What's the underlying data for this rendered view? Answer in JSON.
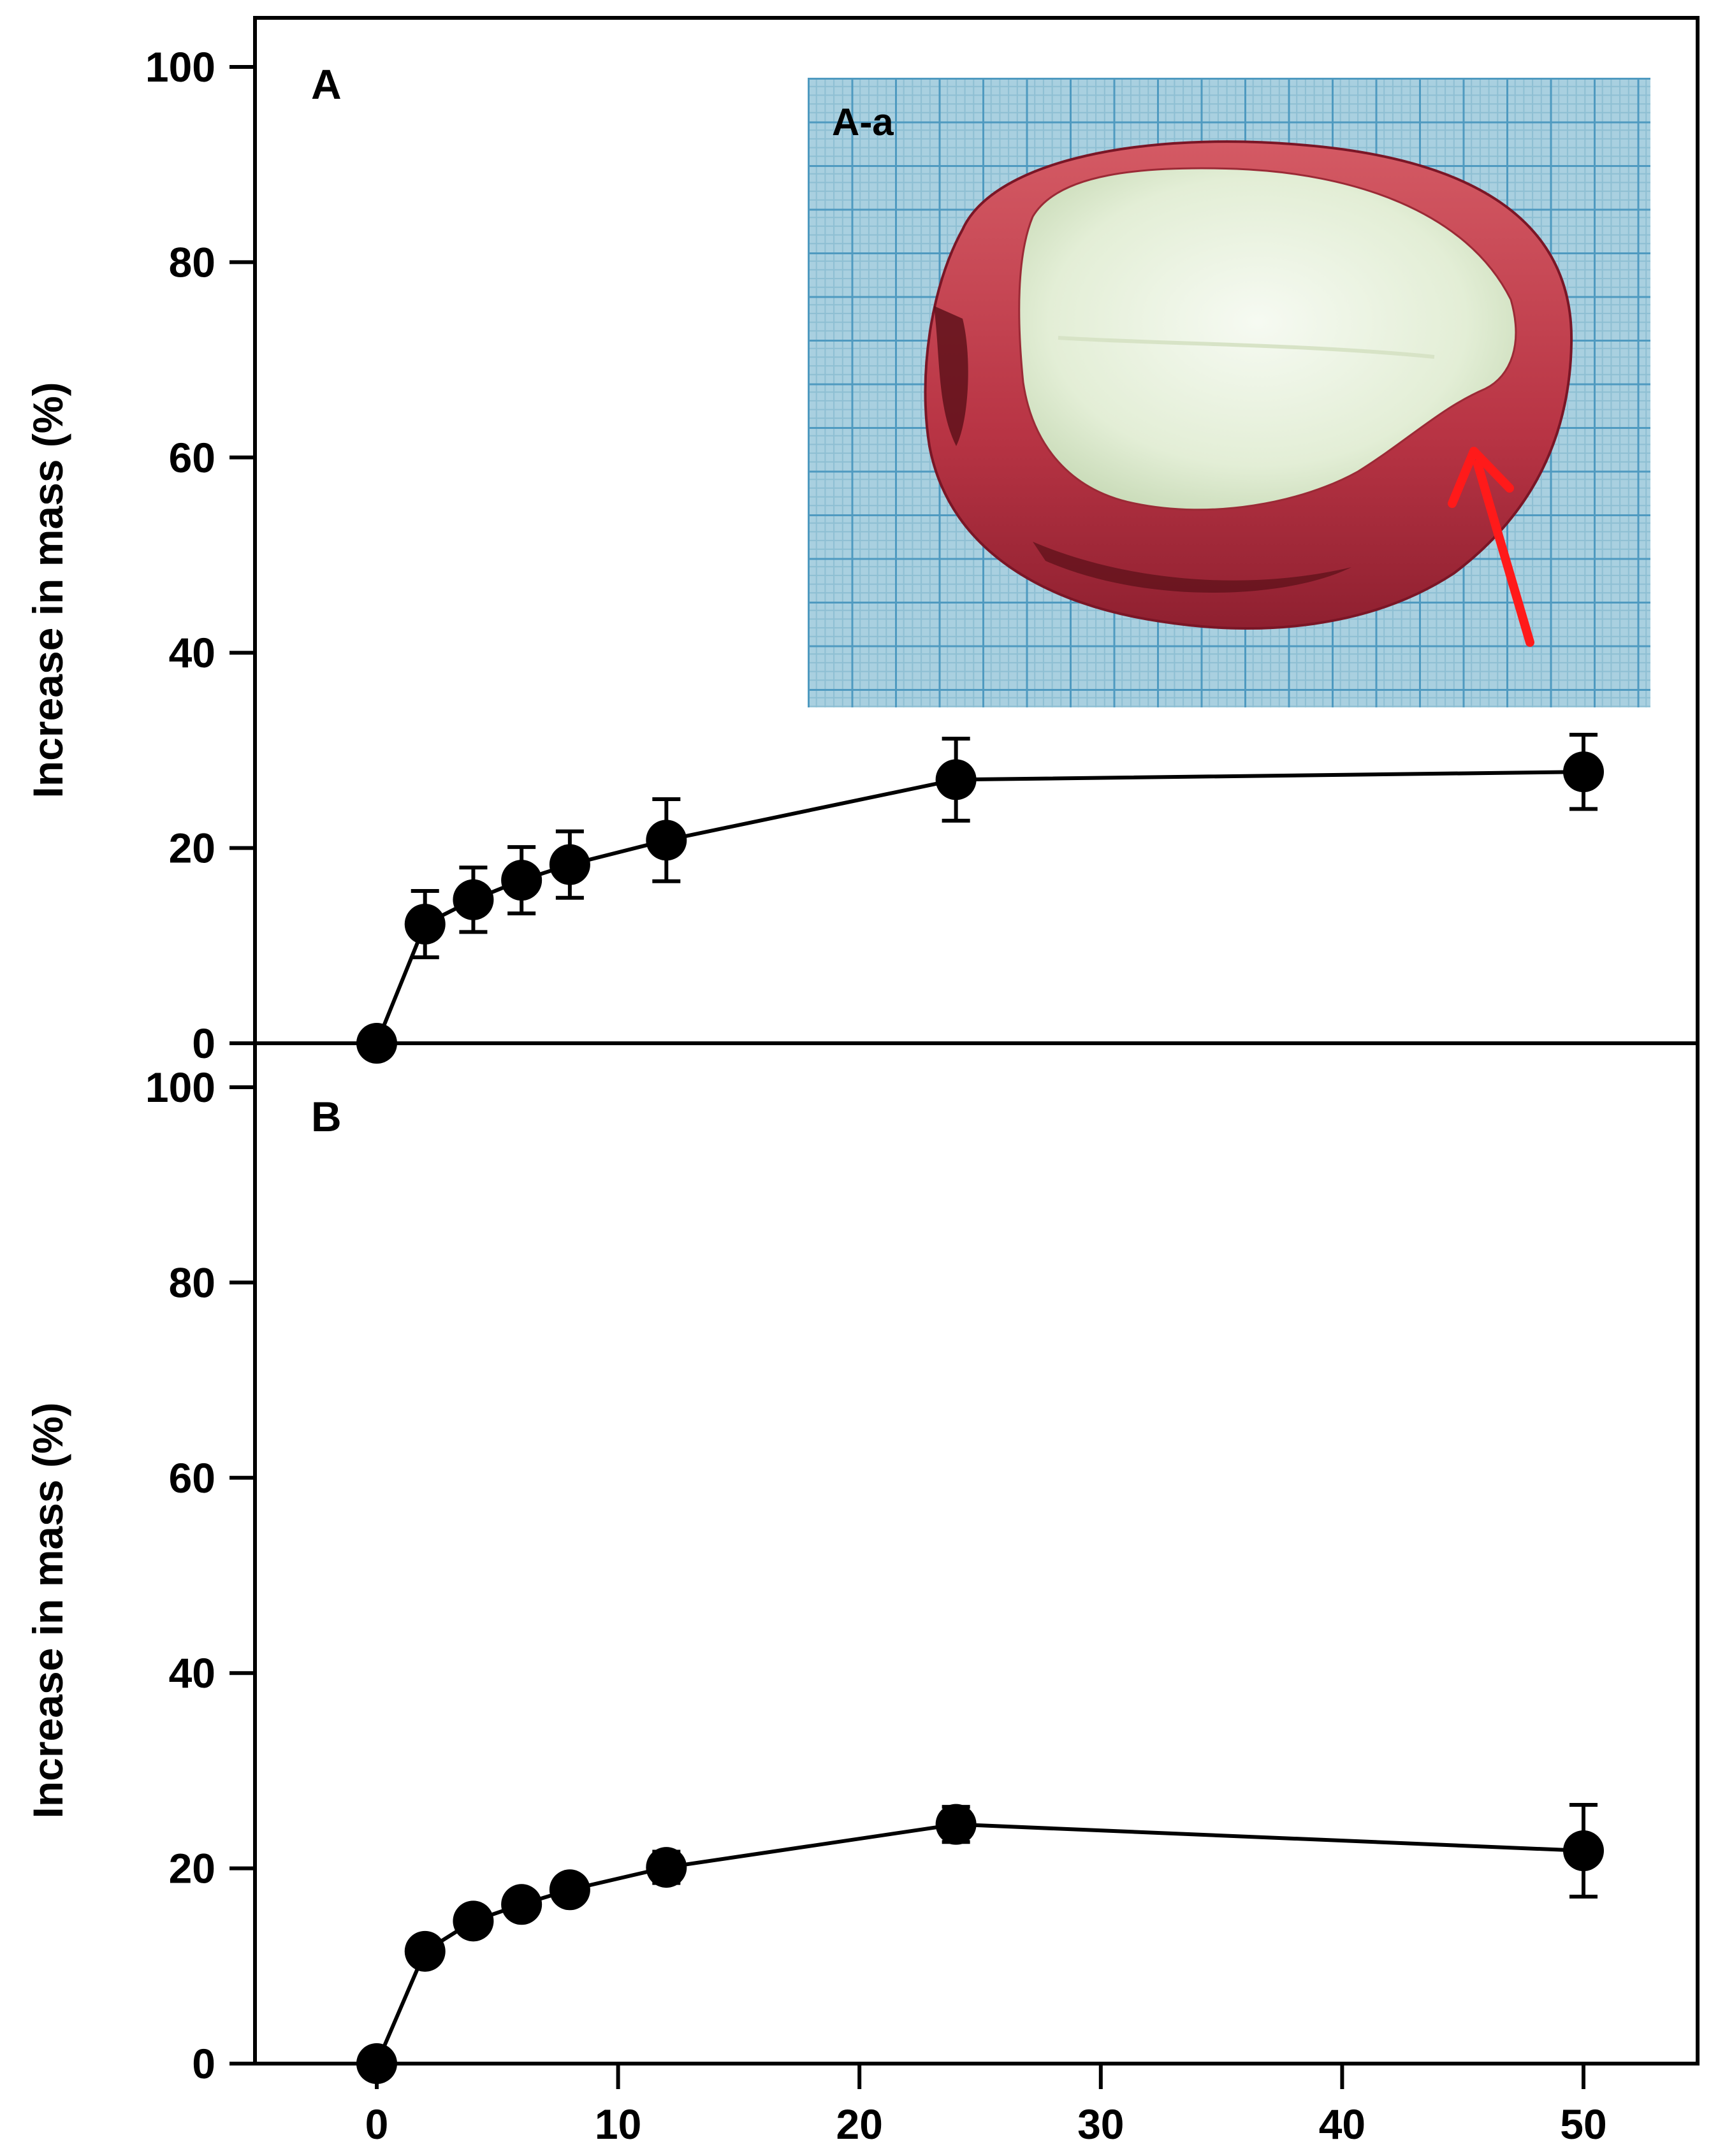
{
  "chart_data": [
    {
      "type": "line",
      "panel_label": "A",
      "title": "",
      "xlabel": "",
      "ylabel": "Increase in mass (%)",
      "xlim": [
        -5,
        55
      ],
      "ylim": [
        0,
        100
      ],
      "x_ticks": [
        "0",
        "10",
        "20",
        "30",
        "40",
        "50"
      ],
      "y_ticks": [
        "0",
        "20",
        "40",
        "60",
        "80",
        "100"
      ],
      "grid": false,
      "series": [
        {
          "name": "",
          "x": [
            0,
            2,
            4,
            6,
            8,
            12,
            24,
            50
          ],
          "values": [
            0,
            12.2,
            14.7,
            16.7,
            18.3,
            20.8,
            27.0,
            27.8
          ],
          "error": [
            0,
            3.4,
            3.3,
            3.4,
            3.4,
            4.2,
            4.2,
            3.8
          ]
        }
      ],
      "inset": {
        "label": "A-a",
        "kind": "photo",
        "subject": "seed cross-section on blue grid paper",
        "arrow_color": "#ff1a1a"
      }
    },
    {
      "type": "line",
      "panel_label": "B",
      "title": "",
      "xlabel": "",
      "ylabel": "Increase in mass (%)",
      "xlim": [
        -5,
        55
      ],
      "ylim": [
        0,
        100
      ],
      "x_ticks": [
        "0",
        "10",
        "20",
        "30",
        "40",
        "50"
      ],
      "y_ticks": [
        "0",
        "20",
        "40",
        "60",
        "80",
        "100"
      ],
      "grid": false,
      "series": [
        {
          "name": "",
          "x": [
            0,
            2,
            4,
            6,
            8,
            12,
            24,
            50
          ],
          "values": [
            0,
            11.5,
            14.6,
            16.3,
            17.8,
            20.1,
            24.5,
            21.8
          ],
          "error": [
            0,
            1.2,
            1.2,
            1.3,
            1.3,
            1.6,
            1.8,
            4.7
          ]
        }
      ]
    }
  ]
}
